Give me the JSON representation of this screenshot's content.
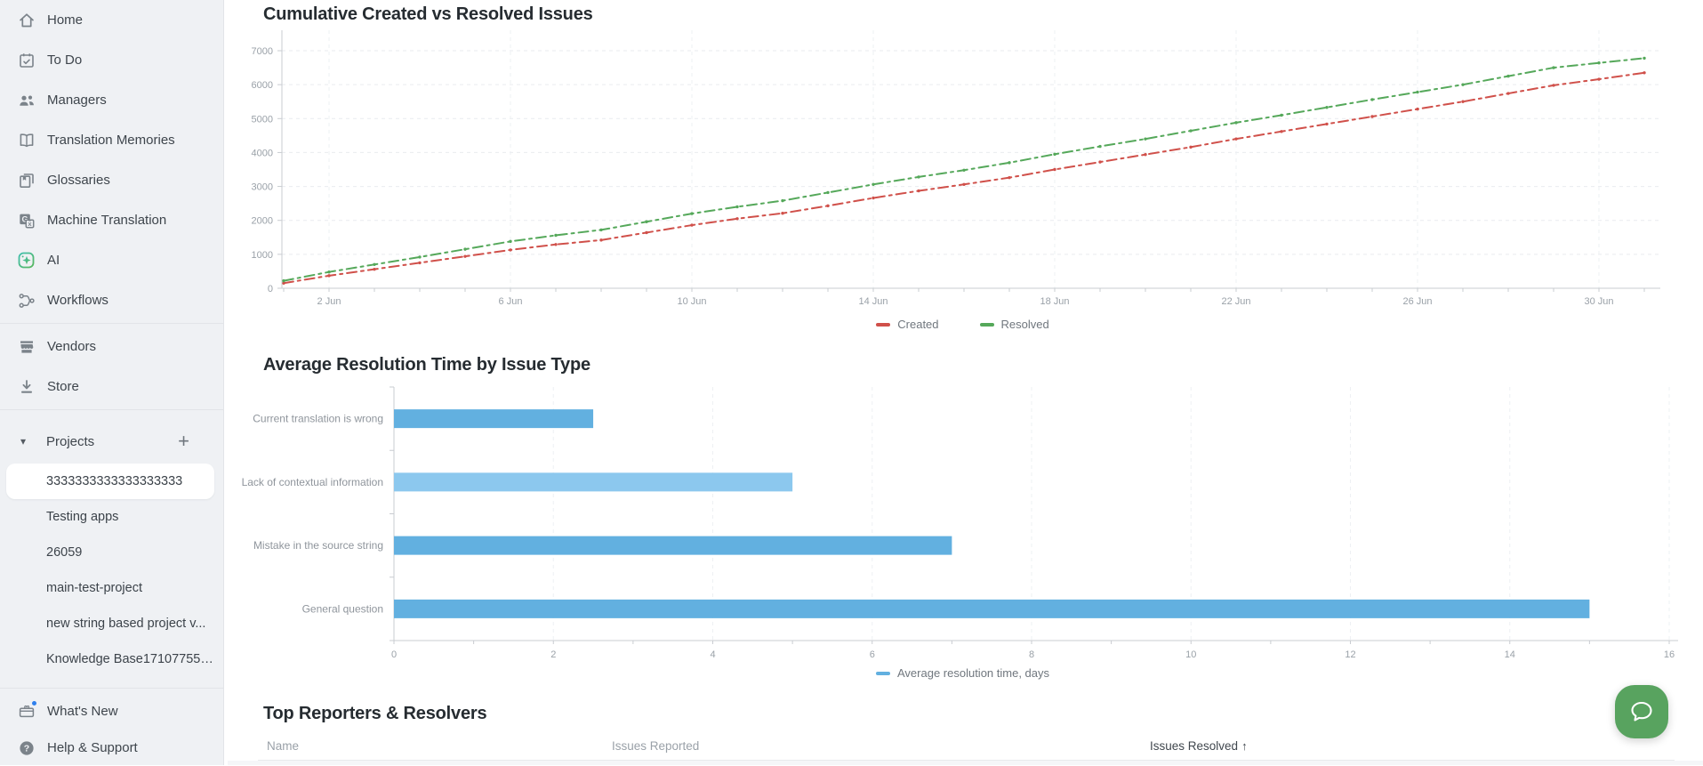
{
  "sidebar": {
    "nav_items": [
      {
        "label": "Home",
        "icon": "home-icon"
      },
      {
        "label": "To Do",
        "icon": "todo-calendar-icon"
      },
      {
        "label": "Managers",
        "icon": "managers-people-icon"
      },
      {
        "label": "Translation Memories",
        "icon": "open-book-icon"
      },
      {
        "label": "Glossaries",
        "icon": "glossary-book-icon"
      },
      {
        "label": "Machine Translation",
        "icon": "machine-translation-icon"
      },
      {
        "label": "AI",
        "icon": "ai-sparkle-icon"
      },
      {
        "label": "Workflows",
        "icon": "workflow-icon"
      }
    ],
    "secondary_items": [
      {
        "label": "Vendors",
        "icon": "storefront-icon"
      },
      {
        "label": "Store",
        "icon": "download-icon"
      }
    ],
    "projects_section": {
      "title": "Projects",
      "add_button": "+",
      "collapse_caret": "▾"
    },
    "projects": [
      {
        "label": "3333333333333333333",
        "active": true
      },
      {
        "label": "Testing apps",
        "active": false
      },
      {
        "label": "26059",
        "active": false
      },
      {
        "label": "main-test-project",
        "active": false
      },
      {
        "label": "new string based project v...",
        "active": false
      },
      {
        "label": "Knowledge Base171077557...",
        "active": false
      }
    ],
    "footer_items": [
      {
        "label": "What's New",
        "icon": "announcement-icon",
        "notification_dot": true
      },
      {
        "label": "Help & Support",
        "icon": "question-circle-icon",
        "notification_dot": false
      }
    ],
    "accent_color": "#43a14b"
  },
  "chart_data": [
    {
      "type": "line",
      "title": "Cumulative Created vs Resolved Issues",
      "x_tick_labels": [
        "2 Jun",
        "6 Jun",
        "10 Jun",
        "14 Jun",
        "18 Jun",
        "22 Jun",
        "26 Jun",
        "30 Jun"
      ],
      "x_tick_days": [
        1,
        5,
        9,
        13,
        17,
        21,
        25,
        29
      ],
      "x_span_days": 31,
      "ylim": [
        0,
        7000
      ],
      "y_ticks": [
        0,
        1000,
        2000,
        3000,
        4000,
        5000,
        6000,
        7000
      ],
      "grid": "dashed",
      "legend_position": "bottom",
      "series": [
        {
          "name": "Created",
          "color": "#d0504a",
          "values": [
            150,
            370,
            560,
            750,
            940,
            1130,
            1290,
            1420,
            1640,
            1860,
            2050,
            2210,
            2430,
            2660,
            2870,
            3060,
            3260,
            3500,
            3720,
            3940,
            4160,
            4400,
            4620,
            4840,
            5060,
            5280,
            5500,
            5740,
            5980,
            6160,
            6350
          ]
        },
        {
          "name": "Resolved",
          "color": "#55a85a",
          "values": [
            220,
            480,
            700,
            920,
            1150,
            1380,
            1560,
            1720,
            1960,
            2200,
            2400,
            2580,
            2820,
            3060,
            3280,
            3480,
            3700,
            3950,
            4180,
            4400,
            4640,
            4880,
            5100,
            5330,
            5560,
            5780,
            6000,
            6250,
            6500,
            6640,
            6780
          ]
        }
      ]
    },
    {
      "type": "bar",
      "orientation": "horizontal",
      "title": "Average Resolution Time by Issue Type",
      "categories": [
        "Current translation is wrong",
        "Lack of contextual information",
        "Mistake in the source string",
        "General question"
      ],
      "values": [
        2.5,
        5,
        7,
        15
      ],
      "bar_colors": [
        "#62b0e0",
        "#8cc8ee",
        "#62b0e0",
        "#62b0e0"
      ],
      "xlim": [
        0,
        16
      ],
      "x_ticks": [
        0,
        2,
        4,
        6,
        8,
        10,
        12,
        14,
        16
      ],
      "grid": "dashed",
      "legend": "Average resolution time, days",
      "legend_color": "#62b0e0",
      "legend_position": "bottom"
    }
  ],
  "table": {
    "title": "Top Reporters & Resolvers",
    "columns": [
      {
        "label": "Name",
        "sorted": false
      },
      {
        "label": "Issues Reported",
        "sorted": false
      },
      {
        "label": "Issues Resolved",
        "sorted": true,
        "sort_direction": "asc",
        "sort_icon": "↑"
      }
    ]
  },
  "chat_widget": {
    "color": "#58a35f"
  }
}
